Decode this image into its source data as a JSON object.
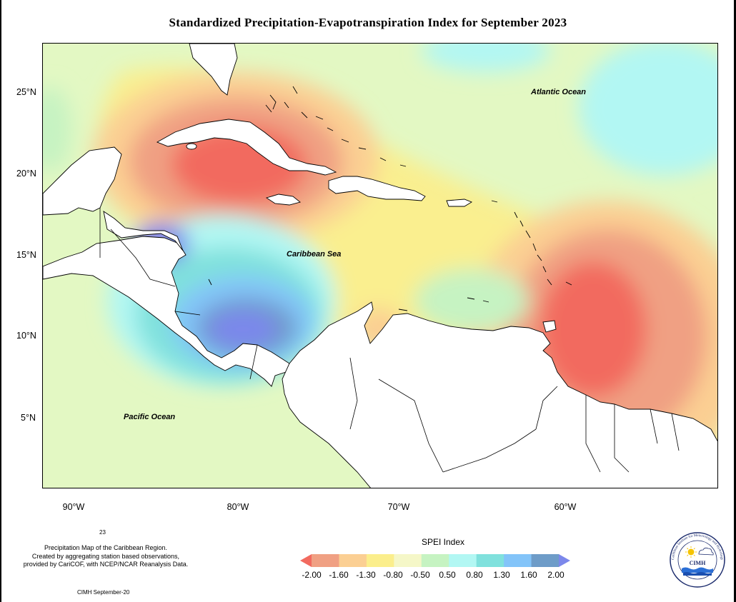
{
  "title": "Standardized Precipitation-Evapotranspiration Index for September 2023",
  "map": {
    "lat_ticks": [
      "25°N",
      "20°N",
      "15°N",
      "10°N",
      "5°N"
    ],
    "lon_ticks": [
      "90°W",
      "80°W",
      "70°W",
      "60°W"
    ],
    "ocean_labels": {
      "atlantic": "Atlantic Ocean",
      "caribbean": "Caribbean Sea",
      "pacific": "Pacific Ocean"
    }
  },
  "footnote_number": "23",
  "caption_lines": [
    "Precipitation Map of the Caribbean Region.",
    "Created by aggregating station based observations,",
    "provided by CariCOF, with NCEP/NCAR Reanalysis Data."
  ],
  "date_note": "CIMH September-20",
  "legend": {
    "title": "SPEI Index",
    "labels": [
      "-2.00",
      "-1.60",
      "-1.30",
      "-0.80",
      "-0.50",
      "0.50",
      "0.80",
      "1.30",
      "1.60",
      "2.00"
    ],
    "colors": [
      "#f26a5f",
      "#f0a083",
      "#fbcf93",
      "#fbee8c",
      "#f5f7c8",
      "#c6f3c2",
      "#b2f7f3",
      "#80e1dd",
      "#83c4f9",
      "#6e9cc8",
      "#7c88eb"
    ]
  },
  "logo": {
    "text": "CIMH",
    "ring_text": "Caribbean Institute for Meteorology and Hydrology"
  }
}
